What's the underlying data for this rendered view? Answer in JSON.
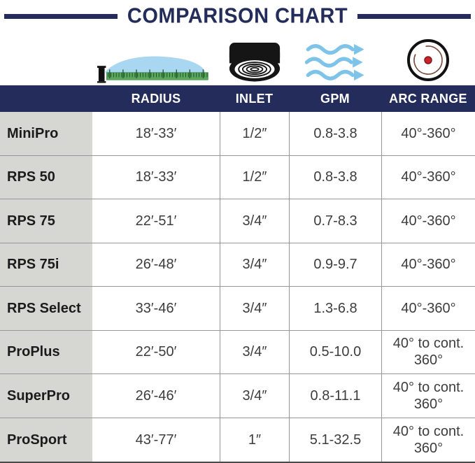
{
  "title": "COMPARISON CHART",
  "table": {
    "columns": [
      "RADIUS",
      "INLET",
      "GPM",
      "ARC RANGE"
    ],
    "rows": [
      {
        "product": "MiniPro",
        "radius": "18′-33′",
        "inlet": "1/2″",
        "gpm": "0.8-3.8",
        "arc": "40°-360°"
      },
      {
        "product": "RPS 50",
        "radius": "18′-33′",
        "inlet": "1/2″",
        "gpm": "0.8-3.8",
        "arc": "40°-360°"
      },
      {
        "product": "RPS 75",
        "radius": "22′-51′",
        "inlet": "3/4″",
        "gpm": "0.7-8.3",
        "arc": "40°-360°"
      },
      {
        "product": "RPS 75i",
        "radius": "26′-48′",
        "inlet": "3/4″",
        "gpm": "0.9-9.7",
        "arc": "40°-360°"
      },
      {
        "product": "RPS Select",
        "radius": "33′-46′",
        "inlet": "3/4″",
        "gpm": "1.3-6.8",
        "arc": "40°-360°"
      },
      {
        "product": "ProPlus",
        "radius": "22′-50′",
        "inlet": "3/4″",
        "gpm": "0.5-10.0",
        "arc": "40° to cont. 360°"
      },
      {
        "product": "SuperPro",
        "radius": "26′-46′",
        "inlet": "3/4″",
        "gpm": "0.8-11.1",
        "arc": "40° to cont. 360°"
      },
      {
        "product": "ProSport",
        "radius": "43′-77′",
        "inlet": "1″",
        "gpm": "5.1-32.5",
        "arc": "40° to cont. 360°"
      }
    ]
  },
  "icons": [
    "radius-ruler-icon",
    "inlet-cap-icon",
    "gpm-flow-icon",
    "arc-range-icon"
  ],
  "colors": {
    "navy": "#232c5a",
    "row_label_bg": "#d6d6d3",
    "grid_border": "#979797",
    "spray_blue": "#a9d7f2",
    "wave_blue": "#7ec3e8",
    "ruler_green": "#57a85c",
    "arc_red_dot": "#c9242b",
    "arc_inner_arc": "#7b4a3a"
  },
  "chart_data": {
    "type": "table",
    "title": "COMPARISON CHART",
    "columns": [
      "",
      "RADIUS",
      "INLET",
      "GPM",
      "ARC RANGE"
    ],
    "rows": [
      [
        "MiniPro",
        "18′-33′",
        "1/2″",
        "0.8-3.8",
        "40°-360°"
      ],
      [
        "RPS 50",
        "18′-33′",
        "1/2″",
        "0.8-3.8",
        "40°-360°"
      ],
      [
        "RPS 75",
        "22′-51′",
        "3/4″",
        "0.7-8.3",
        "40°-360°"
      ],
      [
        "RPS 75i",
        "26′-48′",
        "3/4″",
        "0.9-9.7",
        "40°-360°"
      ],
      [
        "RPS Select",
        "33′-46′",
        "3/4″",
        "1.3-6.8",
        "40°-360°"
      ],
      [
        "ProPlus",
        "22′-50′",
        "3/4″",
        "0.5-10.0",
        "40° to cont. 360°"
      ],
      [
        "SuperPro",
        "26′-46′",
        "3/4″",
        "0.8-11.1",
        "40° to cont. 360°"
      ],
      [
        "ProSport",
        "43′-77′",
        "1″",
        "5.1-32.5",
        "40° to cont. 360°"
      ]
    ]
  }
}
